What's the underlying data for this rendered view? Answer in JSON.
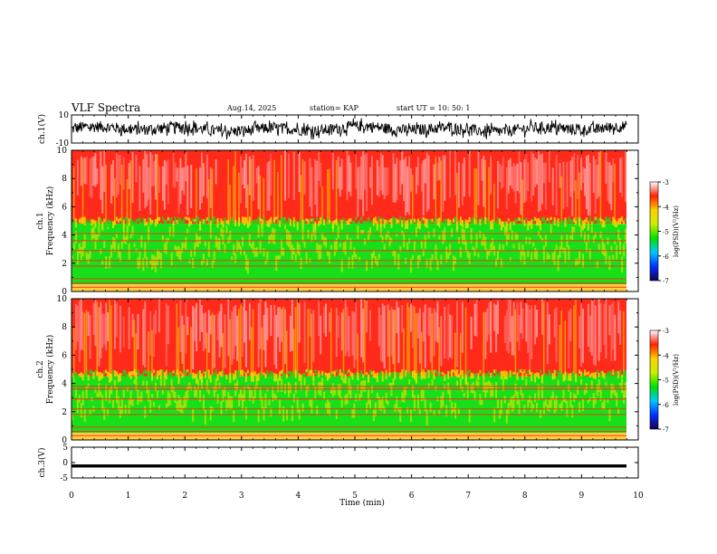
{
  "header": {
    "title": "VLF Spectra",
    "date": "Aug.14, 2025",
    "station": "station= KAP",
    "start_ut": "start  UT  =   10: 50: 1"
  },
  "colors": {
    "spectrum_red": "#ff2a1a",
    "spectrum_pink": "#ffb0b0",
    "spectrum_yellow": "#f7e400",
    "spectrum_green": "#18e018",
    "waveform": "#000000",
    "colorbar": [
      "#1a0050",
      "#0030ff",
      "#00c8ff",
      "#00e000",
      "#c8f000",
      "#ffd000",
      "#ff2000",
      "#ffffff"
    ]
  },
  "chart_data": [
    {
      "type": "line",
      "panel": "ch1-waveform",
      "ylabel": "ch.1(V)",
      "ylim": [
        -10,
        10
      ],
      "yticks": [
        "10",
        "-10"
      ],
      "xlim": [
        0,
        10
      ],
      "description_values": "noisy waveform oscillating roughly between -6 and +8 V for 0 to 9.8 min"
    },
    {
      "type": "heatmap",
      "panel": "ch1-spectrogram",
      "ylabel": "ch.1\nFrequency  (kHz)",
      "ylim": [
        0,
        10
      ],
      "yticks": [
        "0",
        "2",
        "4",
        "6",
        "8",
        "10"
      ],
      "xlim": [
        0,
        9.8
      ],
      "bands": [
        {
          "from": 0,
          "to": 0.5,
          "level": "yellow-orange"
        },
        {
          "from": 0.5,
          "to": 4.8,
          "level": "green-yellow"
        },
        {
          "from": 4.8,
          "to": 10,
          "level": "red"
        }
      ],
      "colorbar": {
        "label": "log(PSD)(V²/Hz)",
        "ticks": [
          "-3",
          "-4",
          "-5",
          "-6",
          "-7"
        ],
        "range": [
          -7,
          -3
        ]
      }
    },
    {
      "type": "heatmap",
      "panel": "ch2-spectrogram",
      "ylabel": "ch.2\nFrequency  (kHz)",
      "ylim": [
        0,
        10
      ],
      "yticks": [
        "0",
        "2",
        "4",
        "6",
        "8",
        "10"
      ],
      "xlim": [
        0,
        9.8
      ],
      "bands": [
        {
          "from": 0,
          "to": 0.5,
          "level": "yellow-orange"
        },
        {
          "from": 0.5,
          "to": 4.5,
          "level": "green-yellow"
        },
        {
          "from": 4.5,
          "to": 10,
          "level": "red"
        }
      ],
      "colorbar": {
        "label": "log(PSD)(V²/Hz)",
        "ticks": [
          "-3",
          "-4",
          "-5",
          "-6",
          "-7"
        ],
        "range": [
          -7,
          -3
        ]
      }
    },
    {
      "type": "line",
      "panel": "ch3-waveform",
      "ylabel": "ch.3(V)",
      "ylim": [
        -5,
        5
      ],
      "yticks": [
        "5",
        "0",
        "-5"
      ],
      "xlim": [
        0,
        10
      ],
      "description_values": "dense waveform near -1 V with small amplitude"
    }
  ],
  "xaxis": {
    "label": "Time  (min)",
    "ticks": [
      "0",
      "1",
      "2",
      "3",
      "4",
      "5",
      "6",
      "7",
      "8",
      "9",
      "10"
    ],
    "range": [
      0,
      10
    ]
  }
}
